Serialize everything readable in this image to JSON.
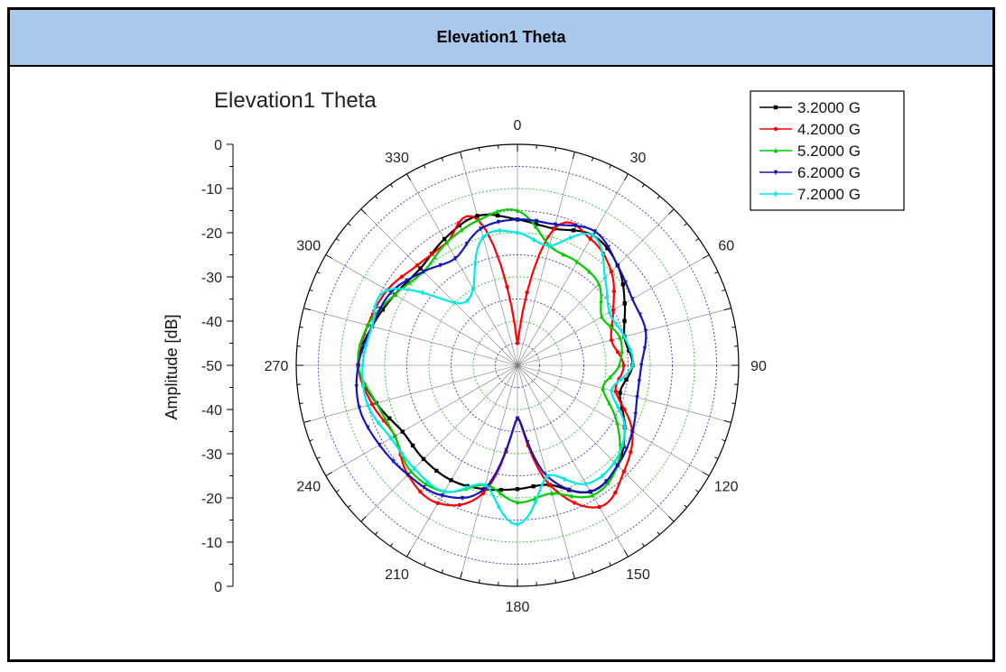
{
  "window": {
    "header_title": "Elevation1  Theta"
  },
  "chart_data": {
    "type": "polar-line",
    "title": "Elevation1 Theta",
    "ylabel": "Amplitude [dB]",
    "angle_unit": "degrees",
    "angle_ticks": [
      0,
      30,
      60,
      90,
      120,
      150,
      180,
      210,
      240,
      270,
      300,
      330
    ],
    "radial_range": [
      -50,
      0
    ],
    "radial_ticks_top": [
      0,
      -10,
      -20,
      -30,
      -40,
      -50
    ],
    "radial_ticks_bottom": [
      -50,
      -40,
      -30,
      -20,
      -10,
      0
    ],
    "grid": true,
    "legend_position": "top-right",
    "angles": [
      0,
      15,
      30,
      45,
      60,
      75,
      90,
      105,
      120,
      135,
      150,
      165,
      180,
      195,
      210,
      225,
      240,
      255,
      270,
      285,
      300,
      315,
      330,
      345
    ],
    "series": [
      {
        "name": "3.2000 G",
        "color": "#000000",
        "marker": "square",
        "values": [
          -17,
          -18,
          -16,
          -18,
          -22,
          -25,
          -24,
          -26,
          -22,
          -18,
          -17,
          -22,
          -22,
          -21,
          -20,
          -20,
          -20,
          -17,
          -14,
          -16,
          -18,
          -19,
          -17,
          -15
        ]
      },
      {
        "name": "4.2000 G",
        "color": "#ff0000",
        "marker": "circle",
        "values": [
          -45,
          -18,
          -17,
          -20,
          -25,
          -28,
          -26,
          -27,
          -20,
          -16,
          -13,
          -22,
          -38,
          -20,
          -14,
          -15,
          -18,
          -16,
          -14,
          -15,
          -16,
          -18,
          -18,
          -16
        ]
      },
      {
        "name": "5.2000 G",
        "color": "#00cc00",
        "marker": "triangle-up",
        "values": [
          -15,
          -22,
          -23,
          -24,
          -28,
          -26,
          -27,
          -30,
          -24,
          -18,
          -16,
          -20,
          -19,
          -22,
          -17,
          -16,
          -18,
          -17,
          -14,
          -15,
          -18,
          -20,
          -18,
          -16
        ]
      },
      {
        "name": "6.2000 G",
        "color": "#1515b8",
        "marker": "triangle-down",
        "values": [
          -17,
          -17,
          -15,
          -18,
          -20,
          -20,
          -22,
          -22,
          -20,
          -18,
          -17,
          -24,
          -38,
          -21,
          -16,
          -15,
          -14,
          -13,
          -14,
          -16,
          -17,
          -20,
          -22,
          -18
        ]
      },
      {
        "name": "7.2000 G",
        "color": "#00e8e8",
        "marker": "diamond",
        "values": [
          -20,
          -22,
          -16,
          -22,
          -26,
          -25,
          -24,
          -28,
          -22,
          -19,
          -19,
          -24,
          -14,
          -22,
          -17,
          -17,
          -17,
          -15,
          -15,
          -16,
          -16,
          -30,
          -30,
          -20
        ]
      }
    ]
  }
}
